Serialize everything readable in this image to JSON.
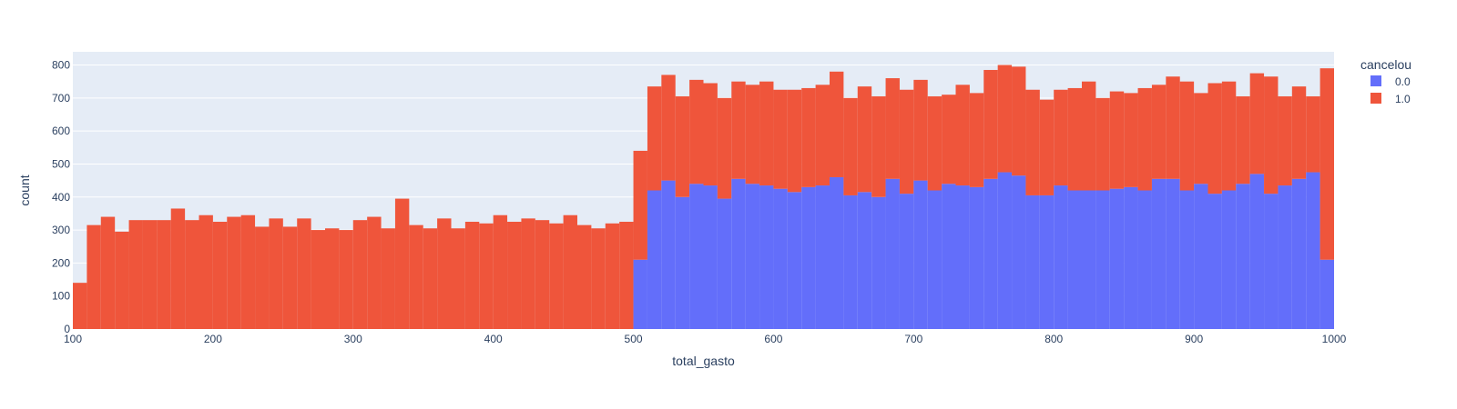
{
  "chart_data": {
    "type": "bar",
    "stacked": true,
    "histogram": true,
    "bin_width": 10,
    "x_bins_start": [
      100,
      110,
      120,
      130,
      140,
      150,
      160,
      170,
      180,
      190,
      200,
      210,
      220,
      230,
      240,
      250,
      260,
      270,
      280,
      290,
      300,
      310,
      320,
      330,
      340,
      350,
      360,
      370,
      380,
      390,
      400,
      410,
      420,
      430,
      440,
      450,
      460,
      470,
      480,
      490,
      500,
      510,
      520,
      530,
      540,
      550,
      560,
      570,
      580,
      590,
      600,
      610,
      620,
      630,
      640,
      650,
      660,
      670,
      680,
      690,
      700,
      710,
      720,
      730,
      740,
      750,
      760,
      770,
      780,
      790,
      800,
      810,
      820,
      830,
      840,
      850,
      860,
      870,
      880,
      890,
      900,
      910,
      920,
      930,
      940,
      950,
      960,
      970,
      980,
      990
    ],
    "series": [
      {
        "name": "0.0",
        "color": "#636efa",
        "values": [
          0,
          0,
          0,
          0,
          0,
          0,
          0,
          0,
          0,
          0,
          0,
          0,
          0,
          0,
          0,
          0,
          0,
          0,
          0,
          0,
          0,
          0,
          0,
          0,
          0,
          0,
          0,
          0,
          0,
          0,
          0,
          0,
          0,
          0,
          0,
          0,
          0,
          0,
          0,
          0,
          210,
          420,
          450,
          400,
          440,
          435,
          395,
          455,
          440,
          435,
          425,
          415,
          430,
          435,
          460,
          405,
          415,
          400,
          455,
          410,
          450,
          420,
          440,
          435,
          430,
          455,
          475,
          465,
          405,
          405,
          435,
          420,
          420,
          420,
          425,
          430,
          420,
          455,
          455,
          420,
          440,
          410,
          420,
          440,
          470,
          410,
          435,
          455,
          475,
          210
        ]
      },
      {
        "name": "1.0",
        "color": "#ef553b",
        "values": [
          140,
          315,
          340,
          295,
          330,
          330,
          330,
          365,
          330,
          345,
          325,
          340,
          345,
          310,
          335,
          310,
          335,
          300,
          305,
          300,
          330,
          340,
          305,
          395,
          315,
          305,
          335,
          305,
          325,
          320,
          345,
          325,
          335,
          330,
          320,
          345,
          315,
          305,
          320,
          325,
          330,
          315,
          320,
          305,
          315,
          310,
          305,
          295,
          300,
          315,
          300,
          310,
          300,
          305,
          320,
          295,
          320,
          305,
          305,
          315,
          305,
          285,
          270,
          305,
          285,
          330,
          325,
          330,
          320,
          290,
          290,
          310,
          330,
          280,
          295,
          285,
          310,
          285,
          310,
          330,
          275,
          335,
          330,
          265,
          305,
          355,
          270,
          280,
          230,
          580
        ]
      }
    ],
    "xlabel": "total_gasto",
    "ylabel": "count",
    "xlim": [
      100,
      1000
    ],
    "ylim": [
      0,
      840
    ],
    "x_ticks": [
      100,
      200,
      300,
      400,
      500,
      600,
      700,
      800,
      900,
      1000
    ],
    "y_ticks": [
      0,
      100,
      200,
      300,
      400,
      500,
      600,
      700,
      800
    ],
    "grid": true,
    "legend": {
      "title": "cancelou",
      "placement": "top-right",
      "entries": [
        "0.0",
        "1.0"
      ]
    },
    "colors": {
      "plot_background": "#e5ecf6",
      "grid": "#ffffff",
      "text": "#2a3f5f"
    }
  }
}
